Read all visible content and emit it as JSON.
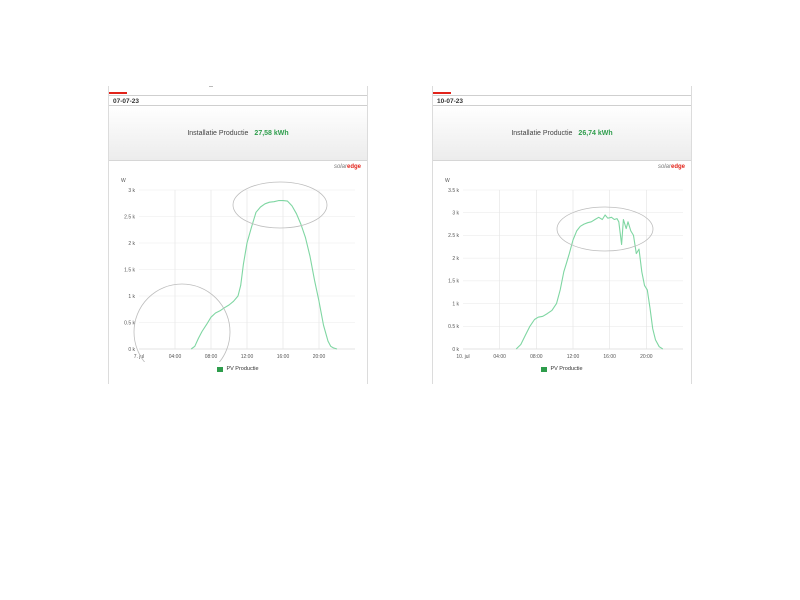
{
  "panels": [
    {
      "date": "07-07-23",
      "summary_label": "Installatie Productie",
      "summary_value": "27,58 kWh",
      "logo_text": "solar",
      "logo_brand": "edge",
      "legend_label": "PV Productie"
    },
    {
      "date": "10-07-23",
      "summary_label": "Installatie Productie",
      "summary_value": "26,74 kWh",
      "logo_text": "solar",
      "logo_brand": "edge",
      "legend_label": "PV Productie"
    }
  ],
  "colors": {
    "line": "#7fd6a2",
    "accent_green": "#2e9d4c",
    "brand_red": "#e2231a",
    "annotation": "#bdbdbd"
  },
  "chart_data": [
    {
      "type": "line",
      "title": "",
      "ylabel": "W",
      "x_tick_labels": [
        "7. jul",
        "04:00",
        "08:00",
        "12:00",
        "16:00",
        "20:00"
      ],
      "y_tick_labels": [
        "0 k",
        "0.5 k",
        "1 k",
        "1.5 k",
        "2 k",
        "2.5 k",
        "3 k"
      ],
      "xlim": [
        0,
        24
      ],
      "ylim": [
        0,
        3000
      ],
      "grid": true,
      "legend": "bottom-center",
      "series": [
        {
          "name": "PV Productie",
          "x": [
            5.8,
            6.2,
            6.6,
            7.0,
            7.5,
            8.0,
            8.5,
            9.0,
            9.5,
            10.0,
            10.5,
            11.0,
            11.3,
            11.6,
            12.0,
            12.5,
            13.0,
            13.5,
            14.0,
            14.5,
            15.0,
            15.5,
            16.0,
            16.5,
            17.0,
            17.5,
            18.0,
            18.5,
            19.0,
            19.5,
            20.0,
            20.5,
            21.0,
            21.3,
            21.6,
            22.0
          ],
          "y": [
            0,
            50,
            200,
            330,
            460,
            600,
            680,
            720,
            780,
            830,
            900,
            1000,
            1200,
            1600,
            2000,
            2300,
            2580,
            2680,
            2740,
            2770,
            2780,
            2800,
            2800,
            2790,
            2700,
            2550,
            2350,
            2100,
            1750,
            1300,
            900,
            450,
            150,
            50,
            20,
            0
          ]
        }
      ],
      "annotations": [
        "circle around morning ramp",
        "ellipse around midday peak"
      ]
    },
    {
      "type": "line",
      "title": "",
      "ylabel": "W",
      "x_tick_labels": [
        "10. jul",
        "04:00",
        "08:00",
        "12:00",
        "16:00",
        "20:00"
      ],
      "y_tick_labels": [
        "0 k",
        "0.5 k",
        "1 k",
        "1.5 k",
        "2 k",
        "2.5 k",
        "3 k",
        "3.5 k"
      ],
      "xlim": [
        0,
        24
      ],
      "ylim": [
        0,
        3500
      ],
      "grid": true,
      "legend": "bottom-center",
      "series": [
        {
          "name": "PV Productie",
          "x": [
            5.8,
            6.3,
            6.8,
            7.3,
            7.8,
            8.2,
            8.7,
            9.2,
            9.7,
            10.2,
            10.6,
            11.0,
            11.3,
            11.6,
            12.0,
            12.4,
            12.8,
            13.2,
            13.6,
            14.0,
            14.4,
            14.8,
            15.2,
            15.5,
            15.8,
            16.2,
            16.5,
            16.8,
            17.0,
            17.3,
            17.5,
            17.8,
            18.0,
            18.3,
            18.6,
            18.9,
            19.2,
            19.5,
            19.8,
            20.1,
            20.4,
            20.7,
            21.0,
            21.4,
            21.8
          ],
          "y": [
            0,
            100,
            300,
            500,
            650,
            700,
            720,
            780,
            850,
            1000,
            1300,
            1700,
            1900,
            2100,
            2400,
            2600,
            2700,
            2750,
            2780,
            2800,
            2850,
            2900,
            2850,
            2950,
            2880,
            2900,
            2850,
            2870,
            2800,
            2300,
            2850,
            2650,
            2800,
            2600,
            2500,
            2100,
            2200,
            1700,
            1400,
            1300,
            900,
            450,
            200,
            50,
            0
          ]
        }
      ],
      "annotations": [
        "ellipse around midday peak"
      ]
    }
  ]
}
